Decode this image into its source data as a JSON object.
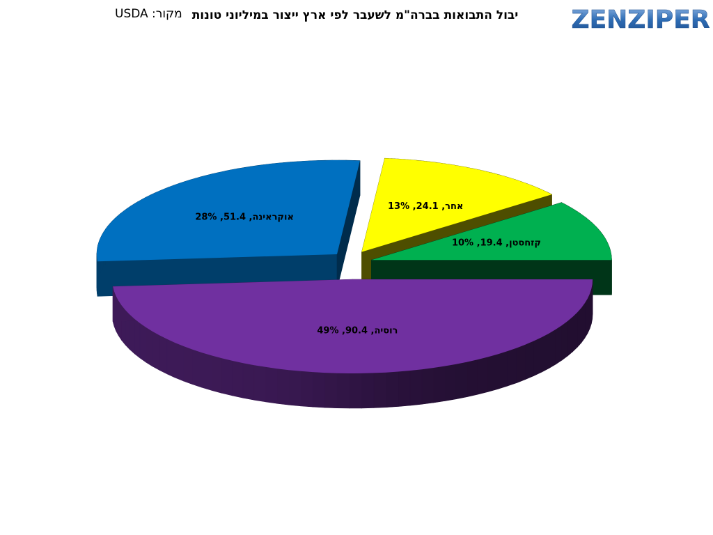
{
  "source": "מקור: USDA",
  "logo": "ZENZIPER",
  "chart_data": {
    "type": "pie3d",
    "title": "יבול התבואות בברה\"מ לשעבר לפי ארץ ייצור במיליוני טונות",
    "categories": [
      "רוסיה",
      "אוקראינה",
      "אחר",
      "קזחסטן"
    ],
    "values": [
      90.4,
      51.4,
      24.1,
      19.4
    ],
    "value_labels": [
      "רוסיה, 90.4, 49%",
      "אוקראינה, 51.4, 28%",
      "אחר, 24.1, 13%",
      "קזחסטן, 19.4, 10%"
    ],
    "colors": [
      "#7030a0",
      "#0070c0",
      "#ffff00",
      "#00b050"
    ]
  }
}
